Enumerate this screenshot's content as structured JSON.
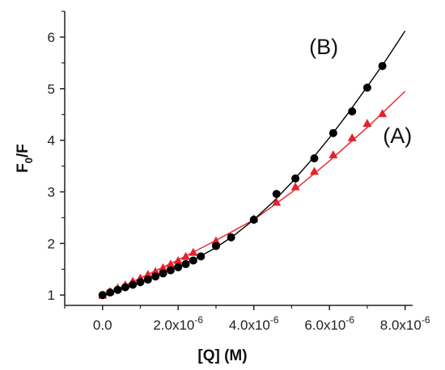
{
  "chart_data": {
    "type": "scatter",
    "title": "",
    "xlabel": "[Q] (M)",
    "ylabel": {
      "main": "F",
      "sub": "0",
      "rest": "/F"
    },
    "xlim": [
      -1e-06,
      8.2e-06
    ],
    "ylim": [
      0.8,
      6.5
    ],
    "grid": false,
    "x_ticks": [
      {
        "value": 0,
        "mantissa": "0.0",
        "exponent": ""
      },
      {
        "value": 2e-06,
        "mantissa": "2.0x10",
        "exponent": "-6"
      },
      {
        "value": 4e-06,
        "mantissa": "4.0x10",
        "exponent": "-6"
      },
      {
        "value": 6e-06,
        "mantissa": "6.0x10",
        "exponent": "-6"
      },
      {
        "value": 8e-06,
        "mantissa": "8.0x10",
        "exponent": "-6"
      }
    ],
    "y_ticks": [
      "1",
      "2",
      "3",
      "4",
      "5",
      "6"
    ],
    "series": [
      {
        "name": "(A)",
        "marker": "triangle",
        "color": "#e8202a",
        "x": [
          0,
          2e-07,
          4e-07,
          6e-07,
          8e-07,
          1e-06,
          1.2e-06,
          1.4e-06,
          1.6e-06,
          1.8e-06,
          2e-06,
          2.2e-06,
          2.4e-06,
          3e-06,
          4e-06,
          4.6e-06,
          5.1e-06,
          5.6e-06,
          6.1e-06,
          6.6e-06,
          7e-06,
          7.4e-06
        ],
        "y": [
          1.0,
          1.07,
          1.14,
          1.2,
          1.27,
          1.33,
          1.4,
          1.46,
          1.53,
          1.6,
          1.67,
          1.75,
          1.83,
          2.05,
          2.48,
          2.8,
          3.1,
          3.4,
          3.72,
          4.05,
          4.33,
          4.52
        ],
        "fit": {
          "x": [
            0,
            1e-06,
            2e-06,
            3e-06,
            4e-06,
            5e-06,
            6e-06,
            7e-06,
            8e-06
          ],
          "y": [
            0.98,
            1.33,
            1.68,
            2.06,
            2.46,
            2.99,
            3.6,
            4.25,
            4.95
          ]
        }
      },
      {
        "name": "(B)",
        "marker": "circle",
        "color": "#000000",
        "x": [
          0,
          2e-07,
          4e-07,
          6e-07,
          8e-07,
          1e-06,
          1.2e-06,
          1.4e-06,
          1.6e-06,
          1.8e-06,
          2e-06,
          2.2e-06,
          2.4e-06,
          2.6e-06,
          3e-06,
          3.4e-06,
          4e-06,
          4.6e-06,
          5.1e-06,
          5.6e-06,
          6.1e-06,
          6.6e-06,
          7e-06,
          7.4e-06
        ],
        "y": [
          1.0,
          1.05,
          1.1,
          1.15,
          1.2,
          1.25,
          1.3,
          1.36,
          1.42,
          1.48,
          1.54,
          1.6,
          1.67,
          1.75,
          1.95,
          2.12,
          2.46,
          2.96,
          3.26,
          3.65,
          4.14,
          4.56,
          5.02,
          5.44
        ],
        "fit": {
          "x": [
            0,
            1e-06,
            2e-06,
            2.5e-06,
            3e-06,
            3.5e-06,
            4e-06,
            4.5e-06,
            5e-06,
            5.5e-06,
            6e-06,
            6.5e-06,
            7e-06,
            7.5e-06,
            8e-06
          ],
          "y": [
            0.98,
            1.24,
            1.55,
            1.72,
            1.92,
            2.17,
            2.46,
            2.8,
            3.18,
            3.6,
            4.05,
            4.53,
            5.04,
            5.56,
            6.12
          ]
        }
      }
    ],
    "labels": [
      {
        "text": "(B)",
        "x": 5.85e-06,
        "y": 5.67
      },
      {
        "text": "(A)",
        "x": 7.8e-06,
        "y": 3.95
      }
    ]
  }
}
